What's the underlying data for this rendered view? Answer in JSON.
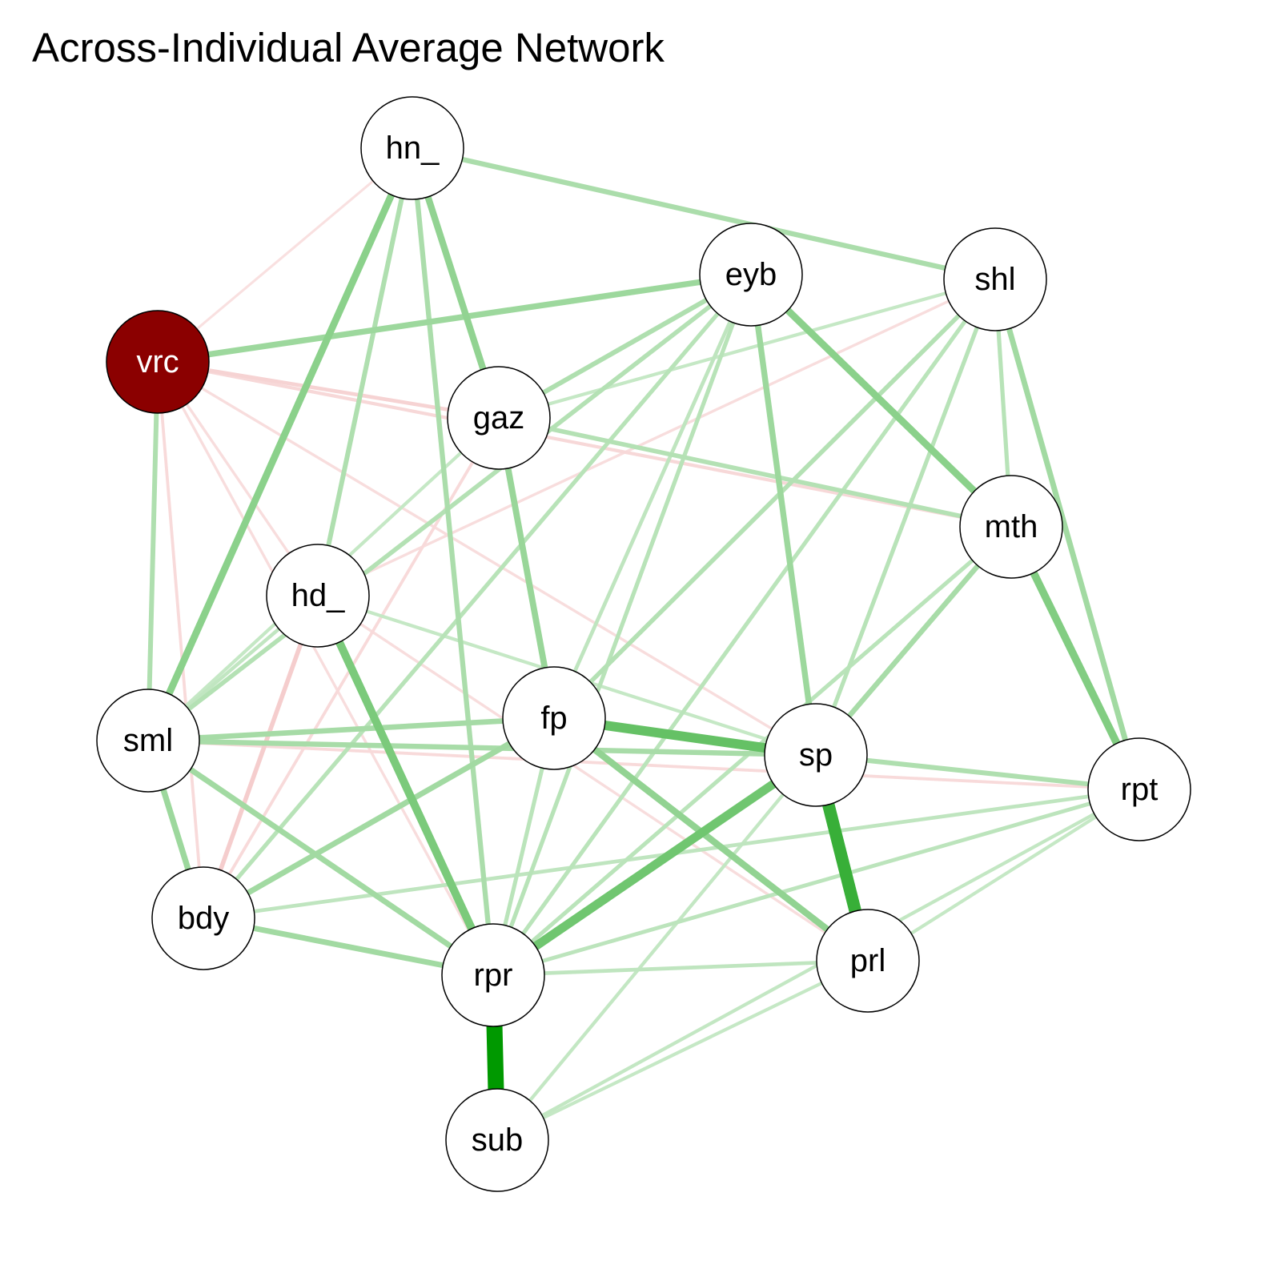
{
  "title": "Across-Individual Average Network",
  "colors": {
    "positive_edge": "#009900",
    "negative_edge": "#e06666",
    "node_fill": "#ffffff",
    "node_border": "#000000",
    "highlight_node_fill": "#8b0000",
    "label_dark": "#000000",
    "label_light": "#ffffff"
  },
  "nodes": [
    {
      "id": "hn_",
      "label": "hn_",
      "highlight": false
    },
    {
      "id": "eyb",
      "label": "eyb",
      "highlight": false
    },
    {
      "id": "shl",
      "label": "shl",
      "highlight": false
    },
    {
      "id": "vrc",
      "label": "vrc",
      "highlight": true
    },
    {
      "id": "gaz",
      "label": "gaz",
      "highlight": false
    },
    {
      "id": "mth",
      "label": "mth",
      "highlight": false
    },
    {
      "id": "hd_",
      "label": "hd_",
      "highlight": false
    },
    {
      "id": "fp",
      "label": "fp",
      "highlight": false
    },
    {
      "id": "sml",
      "label": "sml",
      "highlight": false
    },
    {
      "id": "sp",
      "label": "sp",
      "highlight": false
    },
    {
      "id": "rpt",
      "label": "rpt",
      "highlight": false
    },
    {
      "id": "bdy",
      "label": "bdy",
      "highlight": false
    },
    {
      "id": "rpr",
      "label": "rpr",
      "highlight": false
    },
    {
      "id": "prl",
      "label": "prl",
      "highlight": false
    },
    {
      "id": "sub",
      "label": "sub",
      "highlight": false
    }
  ],
  "edges": [
    {
      "from": "rpr",
      "to": "sub",
      "weight": 1.0,
      "sign": "positive"
    },
    {
      "from": "sp",
      "to": "prl",
      "weight": 0.75,
      "sign": "positive"
    },
    {
      "from": "fp",
      "to": "sp",
      "weight": 0.55,
      "sign": "positive"
    },
    {
      "from": "sp",
      "to": "rpr",
      "weight": 0.5,
      "sign": "positive"
    },
    {
      "from": "hd_",
      "to": "rpr",
      "weight": 0.45,
      "sign": "positive"
    },
    {
      "from": "mth",
      "to": "rpt",
      "weight": 0.42,
      "sign": "positive"
    },
    {
      "from": "eyb",
      "to": "mth",
      "weight": 0.38,
      "sign": "positive"
    },
    {
      "from": "hn_",
      "to": "sml",
      "weight": 0.38,
      "sign": "positive"
    },
    {
      "from": "hn_",
      "to": "gaz",
      "weight": 0.35,
      "sign": "positive"
    },
    {
      "from": "fp",
      "to": "prl",
      "weight": 0.35,
      "sign": "positive"
    },
    {
      "from": "gaz",
      "to": "fp",
      "weight": 0.32,
      "sign": "positive"
    },
    {
      "from": "vrc",
      "to": "eyb",
      "weight": 0.3,
      "sign": "positive"
    },
    {
      "from": "eyb",
      "to": "sp",
      "weight": 0.3,
      "sign": "positive"
    },
    {
      "from": "sml",
      "to": "bdy",
      "weight": 0.3,
      "sign": "positive"
    },
    {
      "from": "shl",
      "to": "rpt",
      "weight": 0.28,
      "sign": "positive"
    },
    {
      "from": "bdy",
      "to": "rpr",
      "weight": 0.28,
      "sign": "positive"
    },
    {
      "from": "sml",
      "to": "rpr",
      "weight": 0.28,
      "sign": "positive"
    },
    {
      "from": "bdy",
      "to": "fp",
      "weight": 0.28,
      "sign": "positive"
    },
    {
      "from": "sml",
      "to": "fp",
      "weight": 0.26,
      "sign": "positive"
    },
    {
      "from": "sml",
      "to": "sp",
      "weight": 0.25,
      "sign": "positive"
    },
    {
      "from": "mth",
      "to": "sp",
      "weight": 0.25,
      "sign": "positive"
    },
    {
      "from": "hn_",
      "to": "shl",
      "weight": 0.24,
      "sign": "positive"
    },
    {
      "from": "hn_",
      "to": "rpr",
      "weight": 0.24,
      "sign": "positive"
    },
    {
      "from": "hn_",
      "to": "hd_",
      "weight": 0.22,
      "sign": "positive"
    },
    {
      "from": "sp",
      "to": "rpt",
      "weight": 0.22,
      "sign": "positive"
    },
    {
      "from": "vrc",
      "to": "sml",
      "weight": 0.22,
      "sign": "positive"
    },
    {
      "from": "eyb",
      "to": "gaz",
      "weight": 0.22,
      "sign": "positive"
    },
    {
      "from": "eyb",
      "to": "sml",
      "weight": 0.2,
      "sign": "positive"
    },
    {
      "from": "shl",
      "to": "fp",
      "weight": 0.2,
      "sign": "positive"
    },
    {
      "from": "gaz",
      "to": "mth",
      "weight": 0.2,
      "sign": "positive"
    },
    {
      "from": "shl",
      "to": "mth",
      "weight": 0.18,
      "sign": "positive"
    },
    {
      "from": "shl",
      "to": "sp",
      "weight": 0.18,
      "sign": "positive"
    },
    {
      "from": "eyb",
      "to": "rpr",
      "weight": 0.18,
      "sign": "positive"
    },
    {
      "from": "eyb",
      "to": "bdy",
      "weight": 0.18,
      "sign": "positive"
    },
    {
      "from": "shl",
      "to": "rpr",
      "weight": 0.17,
      "sign": "positive"
    },
    {
      "from": "mth",
      "to": "rpr",
      "weight": 0.17,
      "sign": "positive"
    },
    {
      "from": "fp",
      "to": "rpr",
      "weight": 0.17,
      "sign": "positive"
    },
    {
      "from": "rpt",
      "to": "rpr",
      "weight": 0.16,
      "sign": "positive"
    },
    {
      "from": "rpt",
      "to": "bdy",
      "weight": 0.15,
      "sign": "positive"
    },
    {
      "from": "prl",
      "to": "rpr",
      "weight": 0.15,
      "sign": "positive"
    },
    {
      "from": "rpt",
      "to": "sub",
      "weight": 0.13,
      "sign": "positive"
    },
    {
      "from": "sp",
      "to": "sub",
      "weight": 0.13,
      "sign": "positive"
    },
    {
      "from": "prl",
      "to": "sub",
      "weight": 0.12,
      "sign": "positive"
    },
    {
      "from": "rpt",
      "to": "prl",
      "weight": 0.12,
      "sign": "positive"
    },
    {
      "from": "eyb",
      "to": "fp",
      "weight": 0.15,
      "sign": "positive"
    },
    {
      "from": "shl",
      "to": "gaz",
      "weight": 0.12,
      "sign": "positive"
    },
    {
      "from": "hd_",
      "to": "sp",
      "weight": 0.12,
      "sign": "positive"
    },
    {
      "from": "hd_",
      "to": "sml",
      "weight": 0.14,
      "sign": "positive"
    },
    {
      "from": "gaz",
      "to": "sml",
      "weight": 0.12,
      "sign": "positive"
    },
    {
      "from": "vrc",
      "to": "gaz",
      "weight": 0.15,
      "sign": "negative"
    },
    {
      "from": "vrc",
      "to": "mth",
      "weight": 0.12,
      "sign": "negative"
    },
    {
      "from": "hd_",
      "to": "bdy",
      "weight": 0.2,
      "sign": "negative"
    },
    {
      "from": "vrc",
      "to": "bdy",
      "weight": 0.1,
      "sign": "negative"
    },
    {
      "from": "vrc",
      "to": "rpr",
      "weight": 0.08,
      "sign": "negative"
    },
    {
      "from": "vrc",
      "to": "sp",
      "weight": 0.08,
      "sign": "negative"
    },
    {
      "from": "sml",
      "to": "rpt",
      "weight": 0.1,
      "sign": "negative"
    },
    {
      "from": "gaz",
      "to": "bdy",
      "weight": 0.1,
      "sign": "negative"
    },
    {
      "from": "hn_",
      "to": "vrc",
      "weight": 0.06,
      "sign": "negative"
    },
    {
      "from": "shl",
      "to": "hd_",
      "weight": 0.08,
      "sign": "negative"
    },
    {
      "from": "hd_",
      "to": "prl",
      "weight": 0.08,
      "sign": "negative"
    },
    {
      "from": "vrc",
      "to": "hd_",
      "weight": 0.08,
      "sign": "negative"
    }
  ]
}
